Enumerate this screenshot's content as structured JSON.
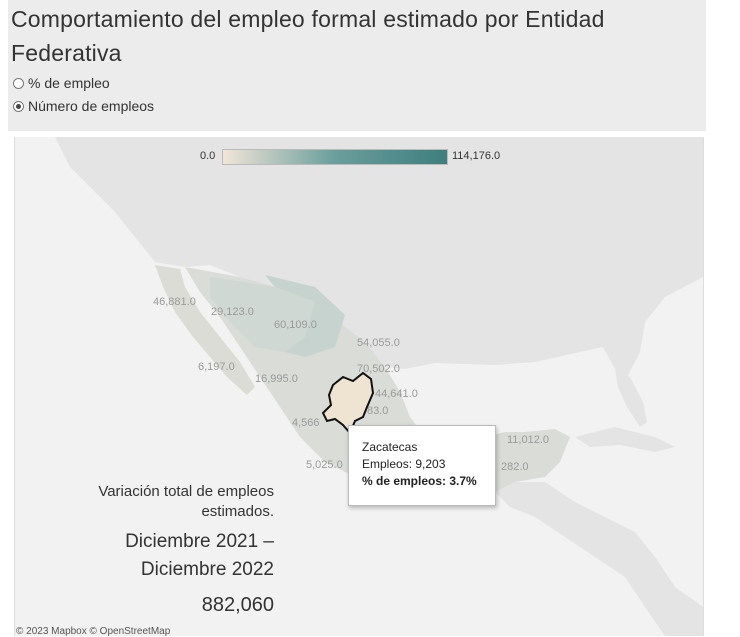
{
  "title": "Comportamiento del empleo formal estimado por Entidad Federativa",
  "radio_options": [
    {
      "label": "% de empleo",
      "selected": false
    },
    {
      "label": "Número de empleos",
      "selected": true
    }
  ],
  "legend": {
    "min": "0.0",
    "max": "114,176.0",
    "color_low": "#f1e5d8",
    "color_high": "#3d7f7d"
  },
  "state_labels": [
    "46,881.0",
    "29,123.0",
    "60,109.0",
    "54,055.0",
    "6,197.0",
    "16,995.0",
    "70,502.0",
    "44,641.0",
    "4,566",
    "83.0",
    "5,025.0",
    "11,012.0",
    "282.0"
  ],
  "tooltip": {
    "state": "Zacatecas",
    "line1": "Empleos: 9,203",
    "line2": "% de empleos: 3.7%"
  },
  "summary": {
    "line1": "Variación total de empleos",
    "line2": "estimados.",
    "period1": "Diciembre 2021 –",
    "period2": "Diciembre 2022",
    "total": "882,060"
  },
  "credits": "© 2023 Mapbox © OpenStreetMap"
}
